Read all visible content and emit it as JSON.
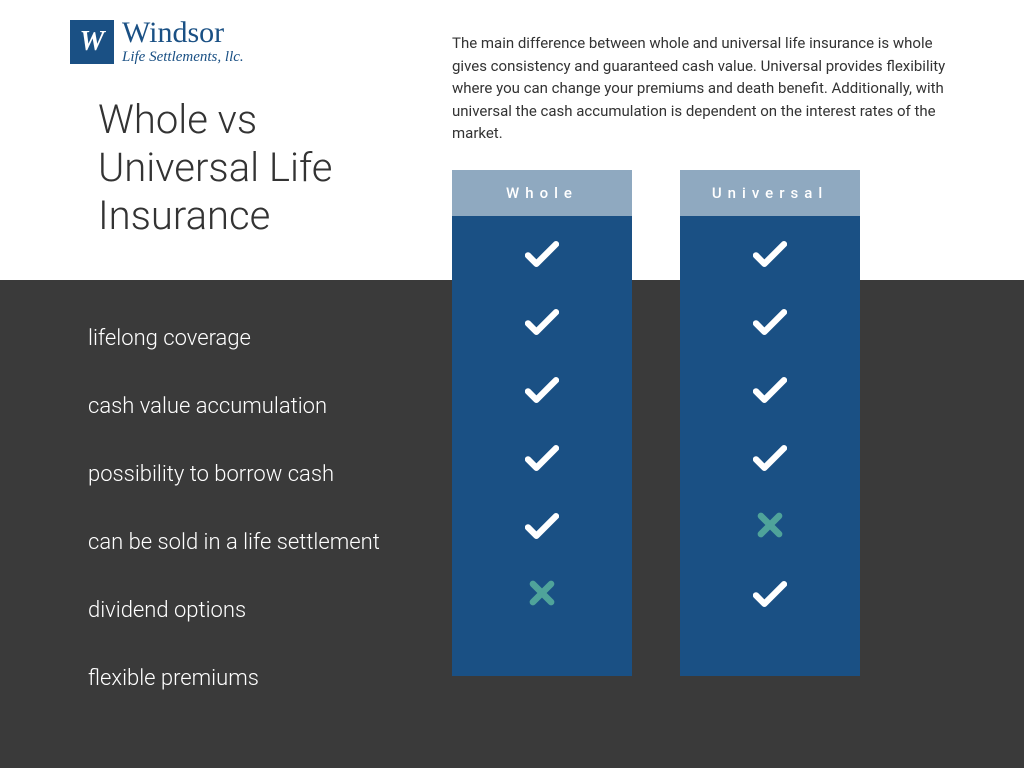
{
  "logo": {
    "mark": "W",
    "title": "Windsor",
    "subtitle": "Life Settlements, llc."
  },
  "title": "Whole vs Universal Life Insurance",
  "description": "The main difference between whole and universal life insurance is whole gives consistency and guaranteed cash value. Universal provides flexibility where you can change your premiums and death benefit. Additionally, with universal the cash accumulation is dependent on the interest rates of the market.",
  "comparison": {
    "columns": [
      {
        "label": "Whole"
      },
      {
        "label": "Universal"
      }
    ],
    "features": [
      {
        "label": "lifelong coverage",
        "values": [
          "check",
          "check"
        ]
      },
      {
        "label": "cash value accumulation",
        "values": [
          "check",
          "check"
        ]
      },
      {
        "label": "possibility to borrow cash",
        "values": [
          "check",
          "check"
        ]
      },
      {
        "label": "can be sold in a life settlement",
        "values": [
          "check",
          "check"
        ]
      },
      {
        "label": "dividend options",
        "values": [
          "check",
          "cross"
        ]
      },
      {
        "label": "flexible premiums",
        "values": [
          "cross",
          "check"
        ]
      }
    ],
    "colors": {
      "check": "#ffffff",
      "cross": "#4fa39a",
      "column_header_bg": "#8fa9c0",
      "column_body_bg": "#1a5084",
      "dark_bg": "#3a3a3a"
    }
  }
}
